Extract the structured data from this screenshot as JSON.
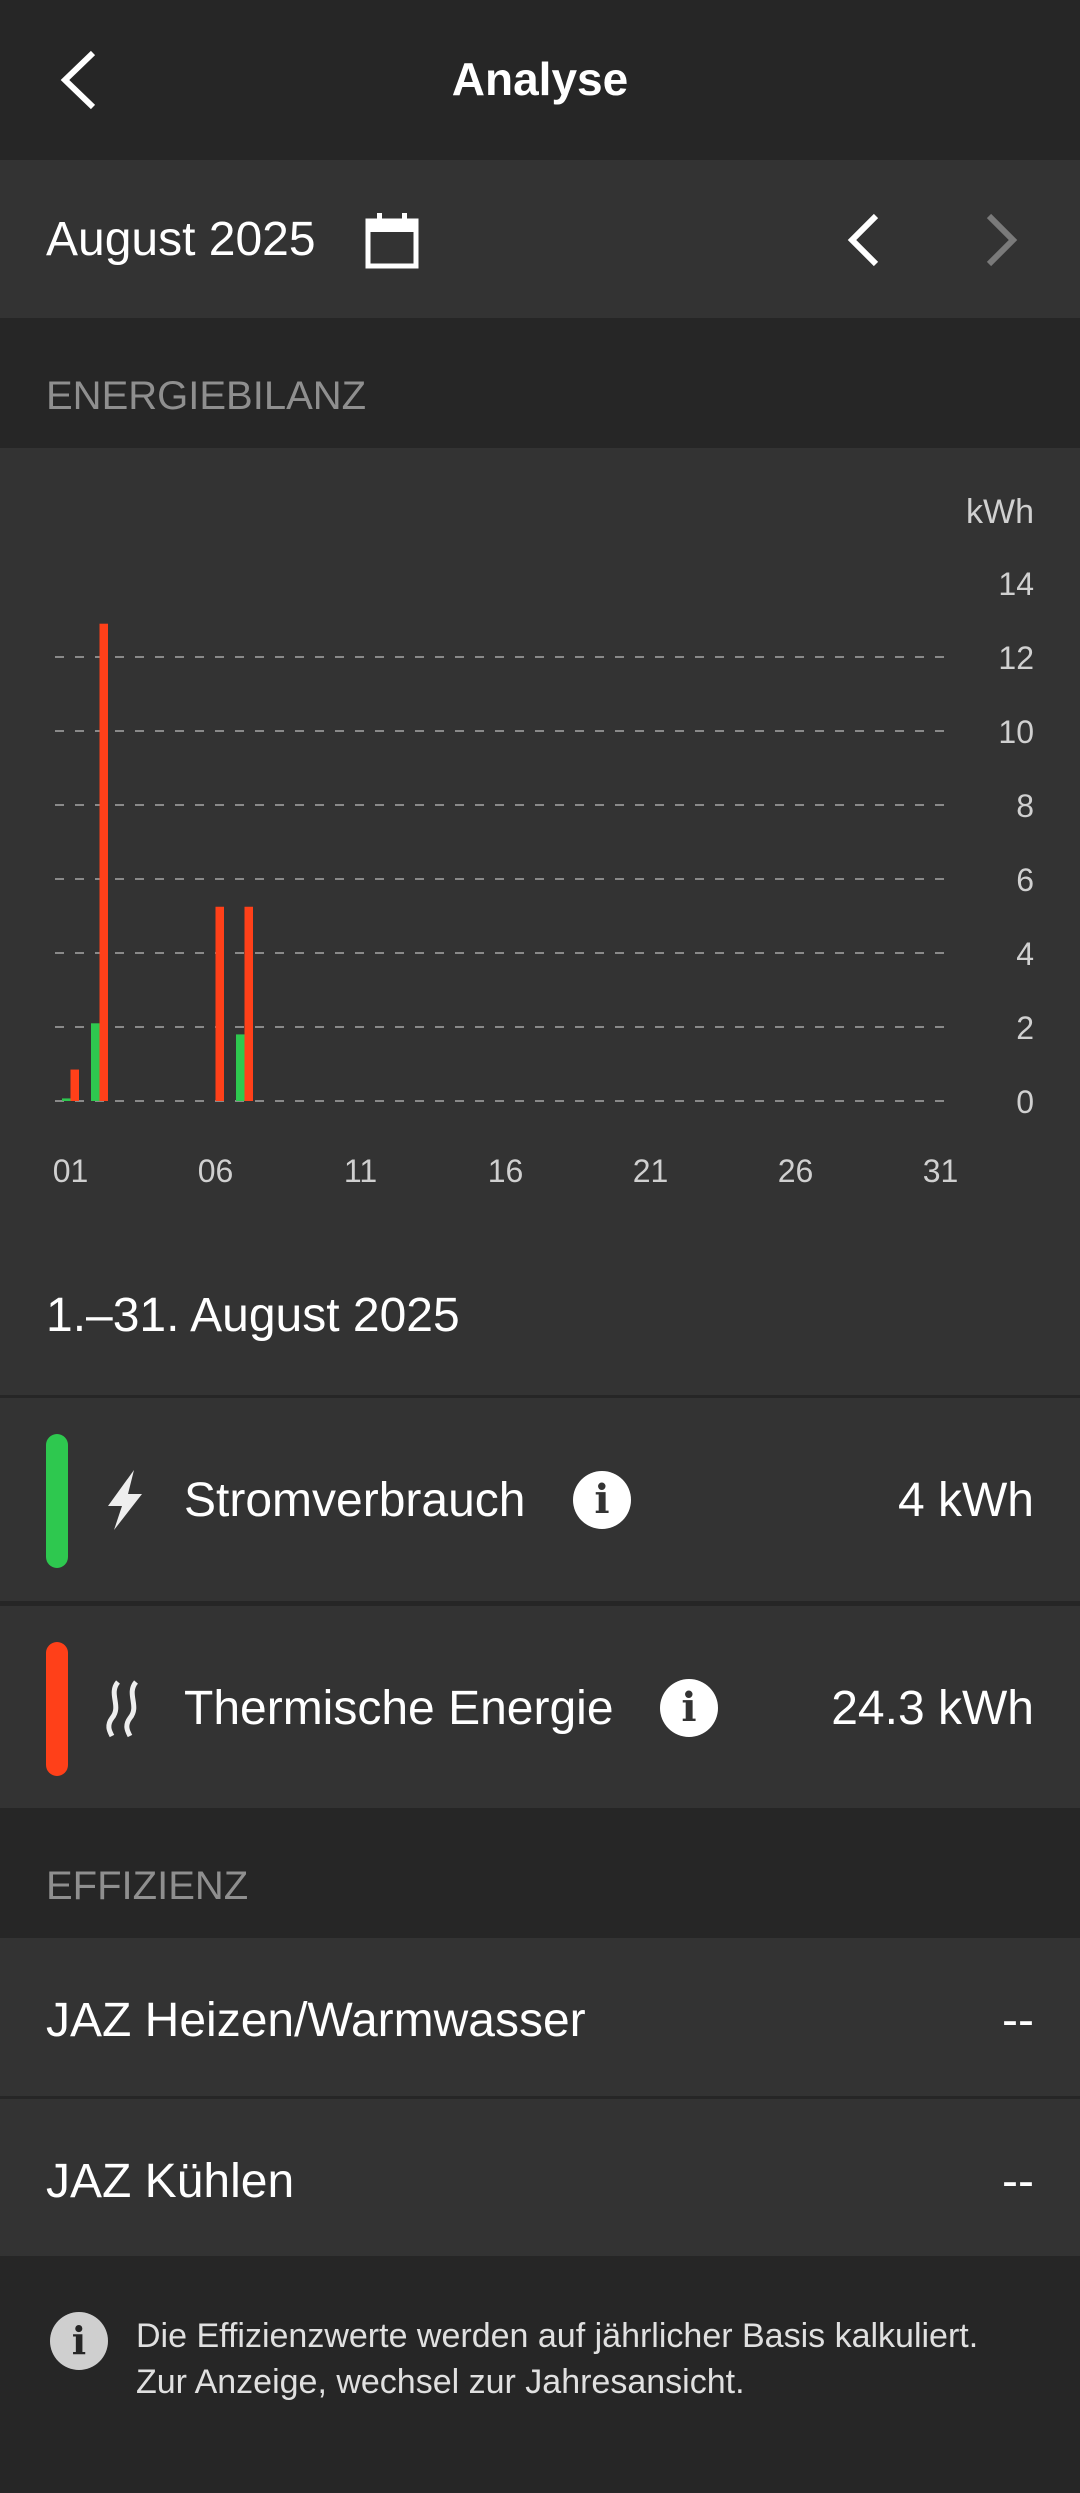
{
  "header": {
    "title": "Analyse"
  },
  "month_selector": {
    "label": "August 2025"
  },
  "sections": {
    "energy": "ENERGIEBILANZ",
    "efficiency": "EFFIZIENZ"
  },
  "colors": {
    "electric": "#2ec84f",
    "thermal": "#ff4019",
    "background": "#262626",
    "panel": "#333333"
  },
  "chart_data": {
    "type": "bar",
    "ylabel": "kWh",
    "ylim": [
      0,
      14
    ],
    "yticks": [
      "0",
      "2",
      "4",
      "6",
      "8",
      "10",
      "12",
      "14"
    ],
    "xticks": [
      "01",
      "06",
      "11",
      "16",
      "21",
      "26",
      "31"
    ],
    "x_range": [
      1,
      31
    ],
    "grid": true,
    "series": [
      {
        "key": "electric",
        "days": [
          1,
          2,
          7
        ],
        "values": [
          0.07,
          2.1,
          1.8
        ]
      },
      {
        "key": "thermal",
        "days": [
          1,
          2,
          6,
          7
        ],
        "values": [
          0.85,
          12.9,
          5.25,
          5.25
        ]
      }
    ]
  },
  "period": "1.–31. August 2025",
  "summary": [
    {
      "label": "Stromverbrauch",
      "value": "4 kWh",
      "icon": "lightning-icon"
    },
    {
      "label": "Thermische Energie",
      "value": "24.3 kWh",
      "icon": "heat-waves-icon"
    }
  ],
  "efficiency": [
    {
      "label": "JAZ Heizen/Warmwasser",
      "value": "--"
    },
    {
      "label": "JAZ Kühlen",
      "value": "--"
    }
  ],
  "note": {
    "icon_glyph": "i",
    "text": "Die Effizienzwerte werden auf jährlicher Basis kalkuliert. Zur Anzeige, wechsel zur Jahresansicht."
  }
}
